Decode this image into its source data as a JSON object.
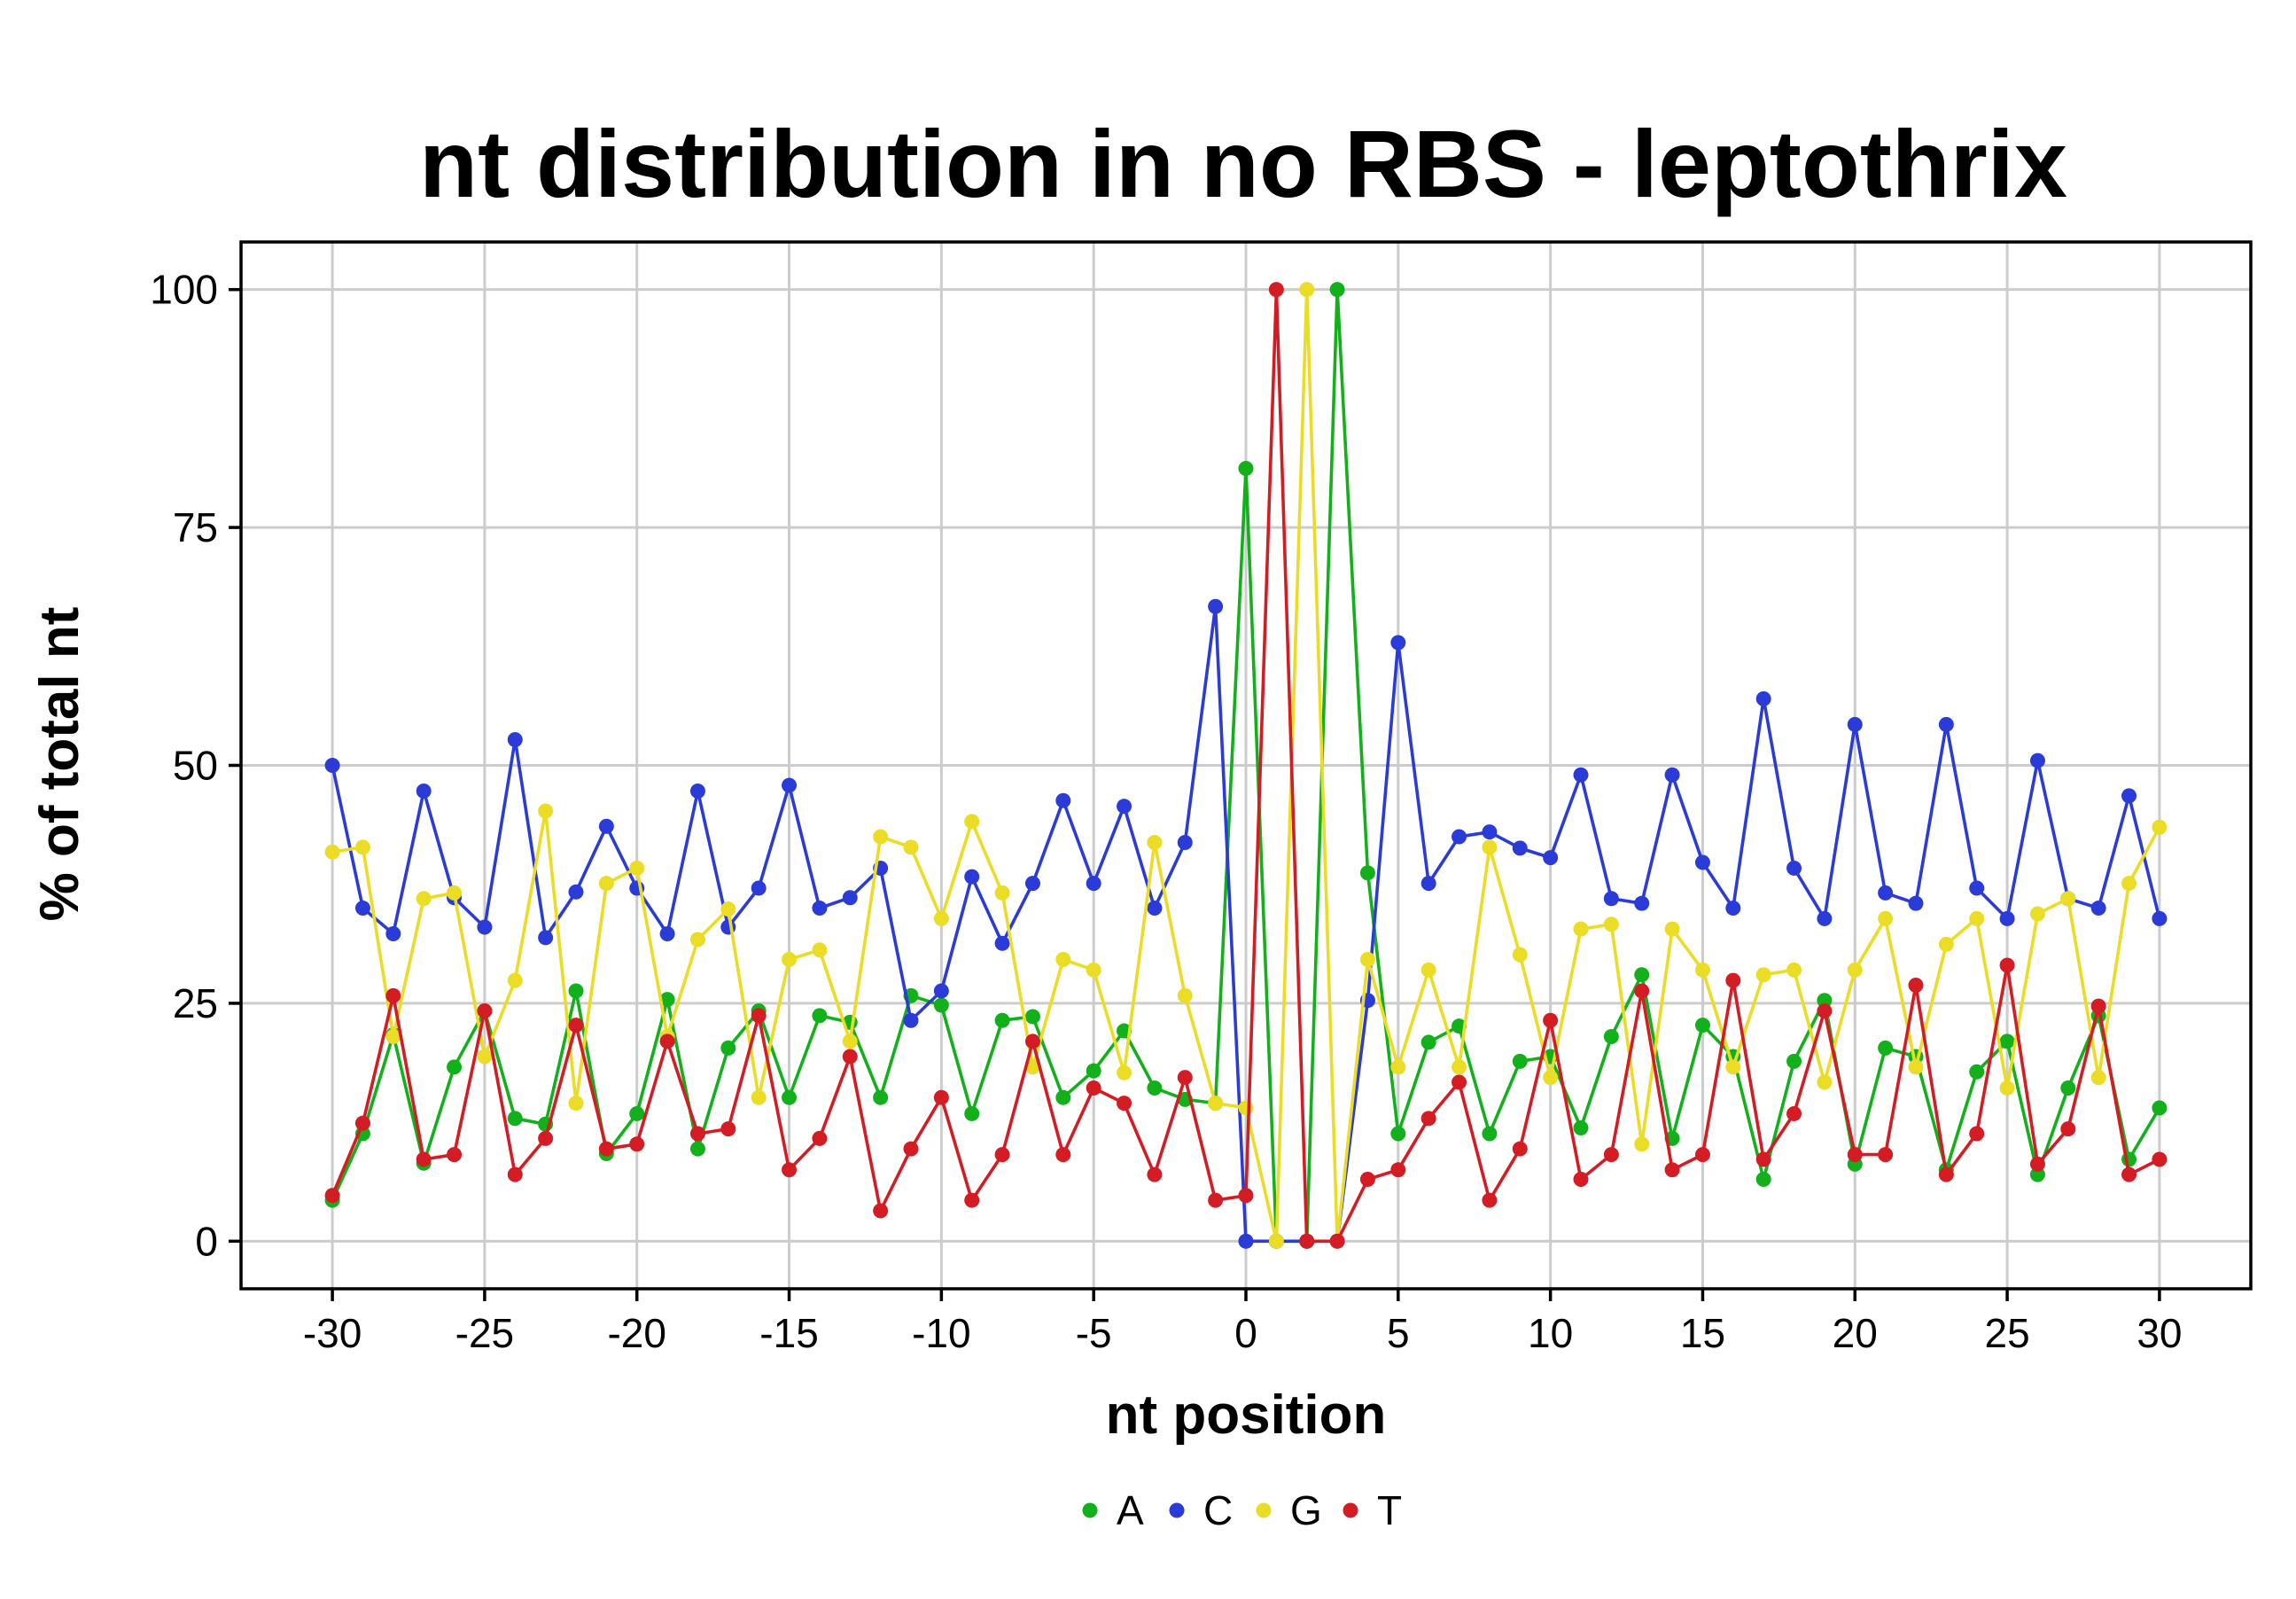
{
  "chart_data": {
    "type": "line",
    "title": "nt distribution in no RBS - leptothrix",
    "xlabel": "nt position",
    "ylabel": "% of total nt",
    "xlim": [
      -33,
      33
    ],
    "ylim": [
      -5,
      105
    ],
    "xticks": [
      -30,
      -25,
      -20,
      -15,
      -10,
      -5,
      0,
      5,
      10,
      15,
      20,
      25,
      30
    ],
    "xtick_labels": [
      "-30",
      "-25",
      "-20",
      "-15",
      "-10",
      "-5",
      "0",
      "5",
      "10",
      "15",
      "20",
      "25",
      "30"
    ],
    "yticks": [
      0,
      25,
      50,
      75,
      100
    ],
    "ytick_labels": [
      "0",
      "25",
      "50",
      "75",
      "100"
    ],
    "grid": true,
    "legend_position": "bottom",
    "x": [
      -30,
      -29,
      -28,
      -27,
      -26,
      -25,
      -24,
      -23,
      -22,
      -21,
      -20,
      -19,
      -18,
      -17,
      -16,
      -15,
      -14,
      -13,
      -12,
      -11,
      -10,
      -9,
      -8,
      -7,
      -6,
      -5,
      -4,
      -3,
      -2,
      -1,
      0,
      1,
      2,
      3,
      4,
      5,
      6,
      7,
      8,
      9,
      10,
      11,
      12,
      13,
      14,
      15,
      16,
      17,
      18,
      19,
      20,
      21,
      22,
      23,
      24,
      25,
      26,
      27,
      28,
      29,
      30
    ],
    "series": [
      {
        "name": "A",
        "color": "#12b01b",
        "values": [
          4.3,
          11.3,
          21.7,
          8.2,
          18.3,
          24.2,
          12.9,
          12.3,
          26.3,
          9.2,
          13.4,
          25.4,
          9.7,
          20.3,
          24.2,
          15.1,
          23.7,
          23.0,
          15.1,
          25.8,
          24.8,
          13.4,
          23.2,
          23.6,
          15.1,
          17.9,
          22.1,
          16.1,
          14.9,
          14.5,
          81.2,
          0,
          0,
          100,
          38.7,
          11.3,
          20.9,
          22.6,
          11.3,
          18.9,
          19.4,
          11.9,
          21.5,
          28.0,
          10.8,
          22.7,
          19.4,
          6.5,
          18.9,
          25.3,
          8.1,
          20.3,
          19.4,
          7.5,
          17.8,
          21.0,
          7.0,
          16.1,
          23.7,
          8.6,
          14.0
        ]
      },
      {
        "name": "C",
        "color": "#2a3bd8",
        "values": [
          50.0,
          35.0,
          32.3,
          47.3,
          36.1,
          33.0,
          52.7,
          31.9,
          36.7,
          43.6,
          37.1,
          32.3,
          47.3,
          33.0,
          37.1,
          47.9,
          35.0,
          36.1,
          39.2,
          23.2,
          26.3,
          38.3,
          31.3,
          37.6,
          46.3,
          37.6,
          45.7,
          35.0,
          41.9,
          66.7,
          0,
          0,
          0,
          0,
          25.3,
          62.9,
          37.6,
          42.5,
          43.0,
          41.3,
          40.3,
          49.0,
          36.0,
          35.5,
          49.0,
          39.8,
          35.0,
          57.0,
          39.2,
          33.9,
          54.3,
          36.6,
          35.5,
          54.3,
          37.1,
          33.9,
          50.5,
          36.0,
          35.0,
          46.8,
          33.9
        ]
      },
      {
        "name": "G",
        "color": "#ebdc26",
        "values": [
          40.9,
          41.4,
          21.5,
          36.0,
          36.6,
          19.4,
          27.4,
          45.2,
          14.5,
          37.6,
          39.2,
          21.5,
          31.7,
          34.9,
          15.1,
          29.6,
          30.6,
          21.0,
          42.5,
          41.4,
          33.9,
          44.1,
          36.6,
          18.3,
          29.6,
          28.5,
          17.7,
          41.9,
          25.8,
          14.5,
          14.0,
          0,
          100,
          0,
          29.6,
          18.3,
          28.5,
          18.3,
          41.4,
          30.1,
          17.2,
          32.8,
          33.3,
          10.2,
          32.8,
          28.5,
          18.3,
          28.0,
          28.5,
          16.7,
          28.5,
          33.9,
          18.3,
          31.2,
          33.9,
          16.1,
          34.4,
          36.0,
          17.2,
          37.6,
          43.5
        ]
      },
      {
        "name": "T",
        "color": "#d31c23",
        "values": [
          4.8,
          12.4,
          25.8,
          8.6,
          9.1,
          24.2,
          7.0,
          10.8,
          22.7,
          9.7,
          10.2,
          21.0,
          11.3,
          11.8,
          23.7,
          7.5,
          10.8,
          19.4,
          3.2,
          9.7,
          15.1,
          4.3,
          9.1,
          21.0,
          9.1,
          16.1,
          14.5,
          7.0,
          17.2,
          4.3,
          4.8,
          100,
          0,
          0,
          6.5,
          7.5,
          12.9,
          16.7,
          4.3,
          9.7,
          23.2,
          6.5,
          9.1,
          26.3,
          7.5,
          9.1,
          27.4,
          8.6,
          13.4,
          24.2,
          9.1,
          9.1,
          26.9,
          7.0,
          11.3,
          29.0,
          8.1,
          11.8,
          24.7,
          7.0,
          8.6
        ]
      }
    ]
  }
}
